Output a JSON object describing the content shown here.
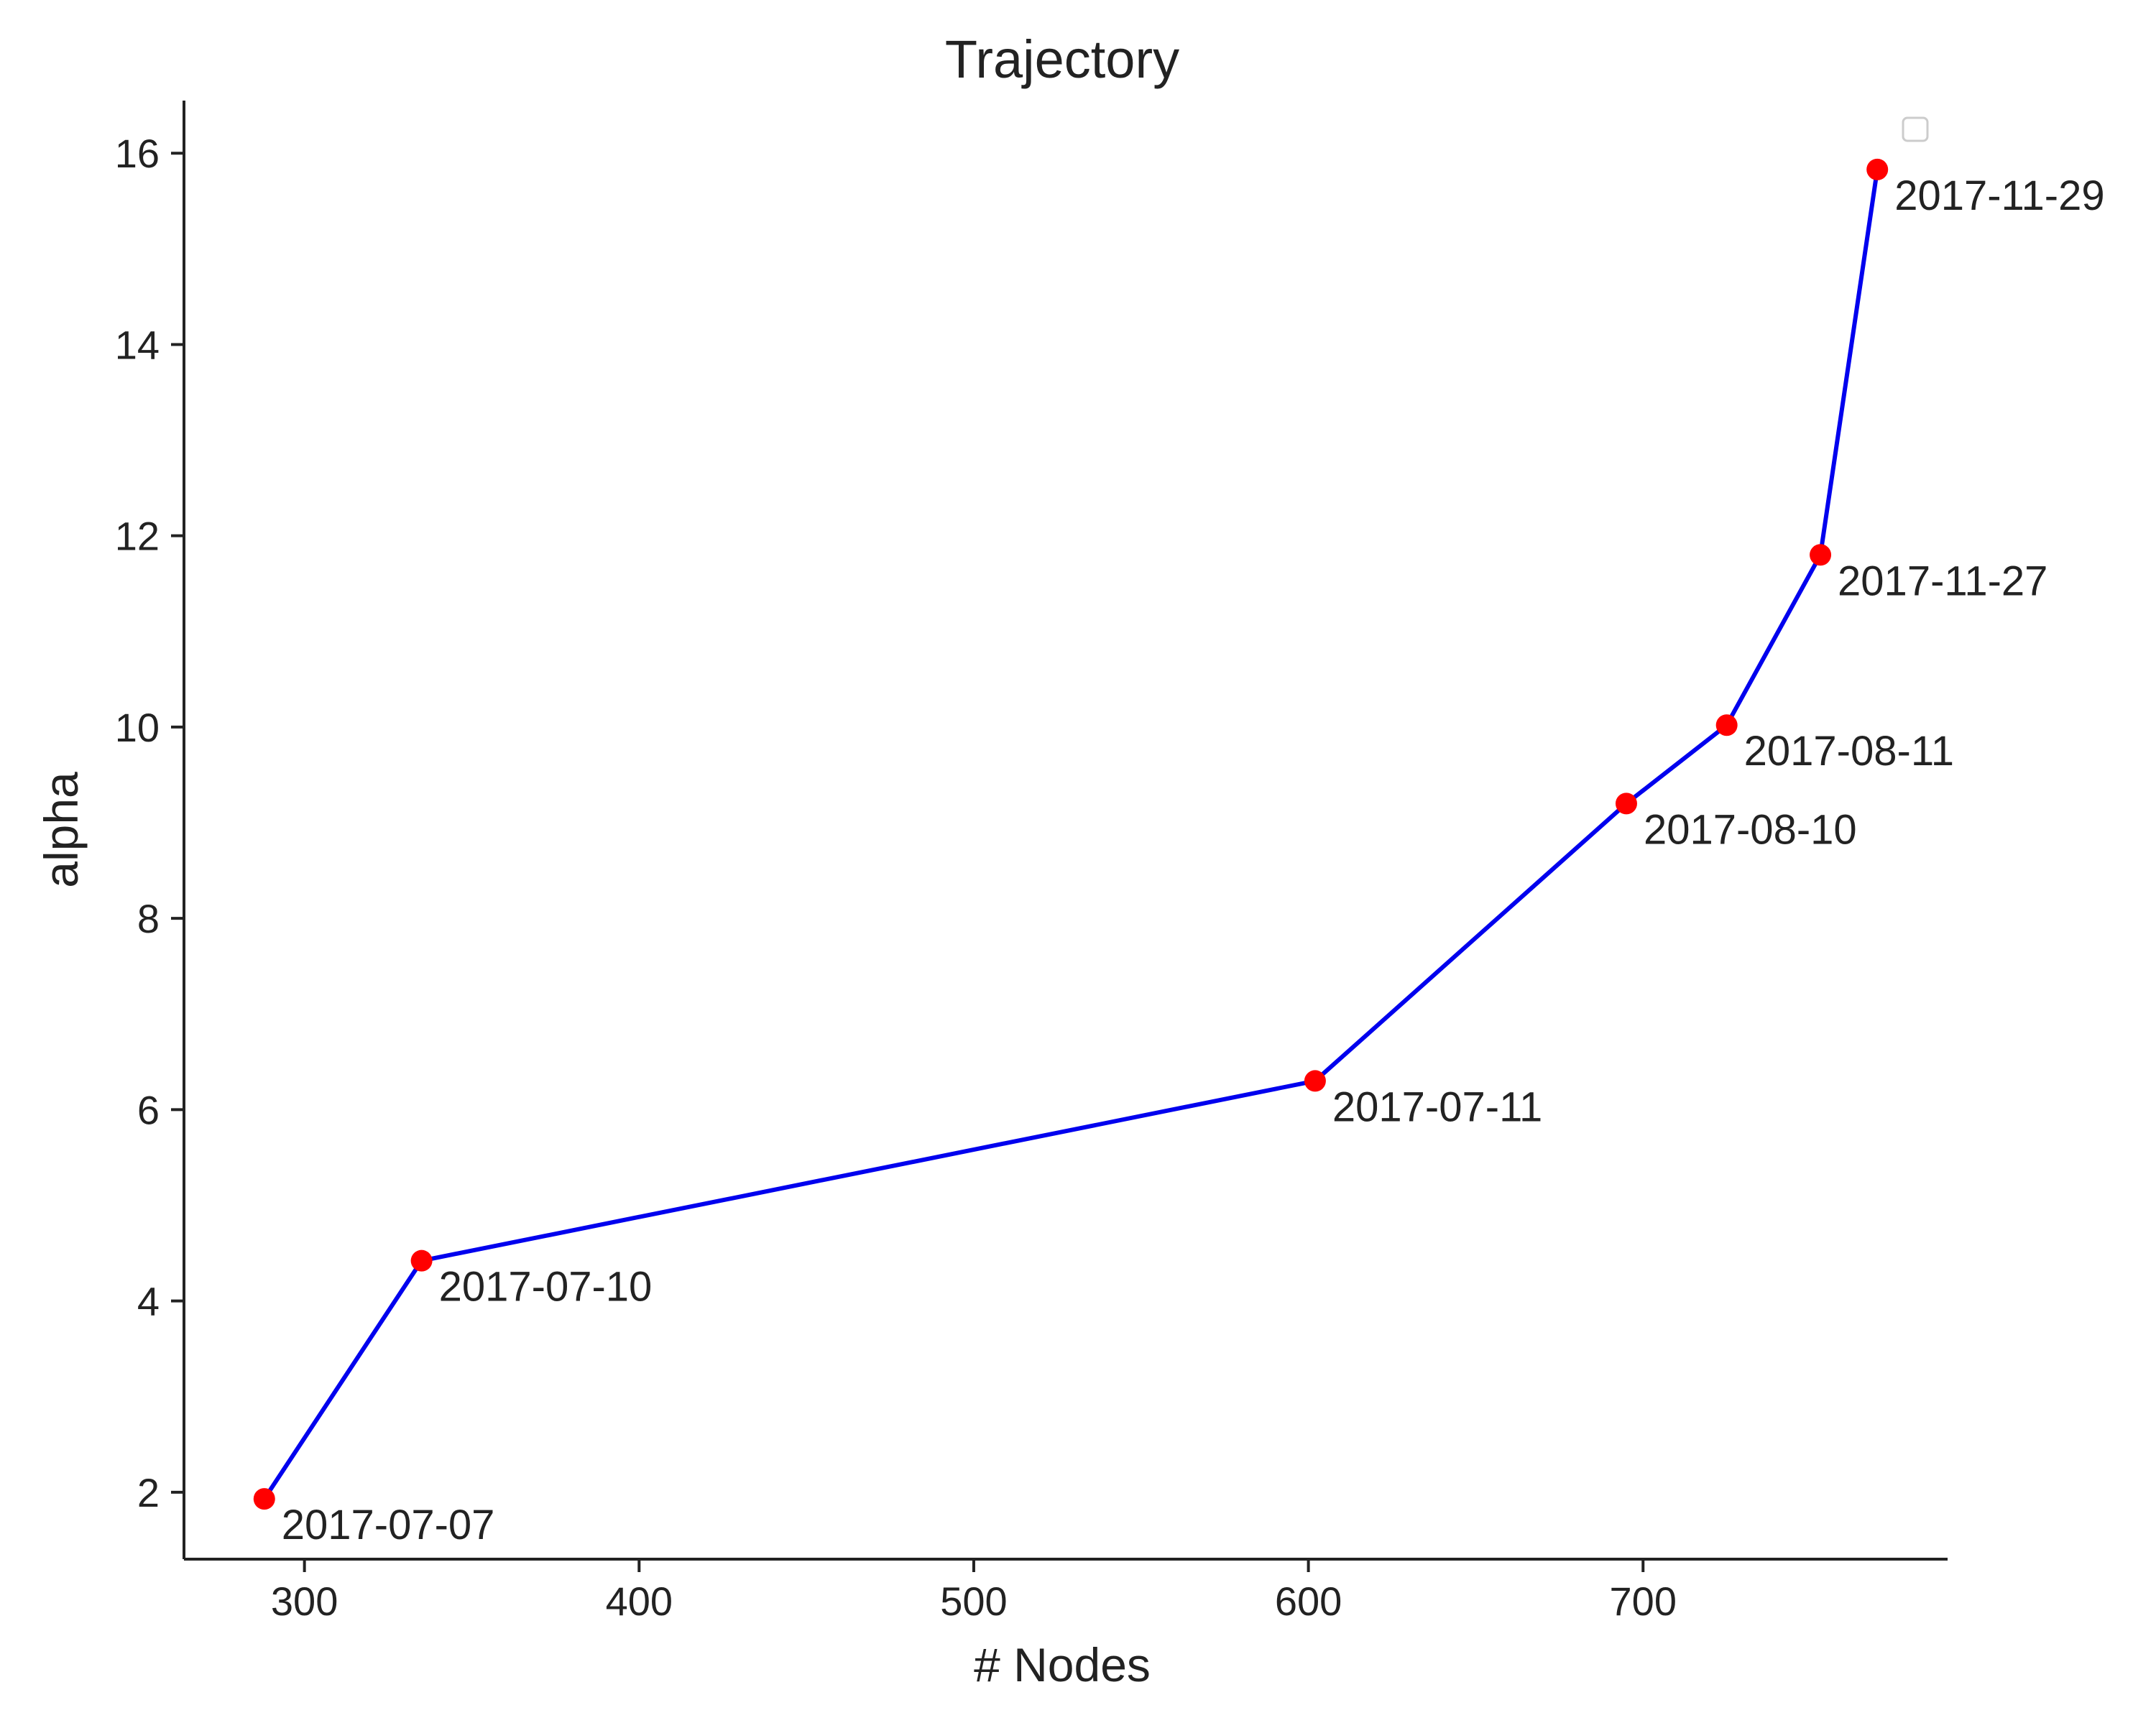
{
  "chart_data": {
    "type": "line",
    "title": "Trajectory",
    "xlabel": "# Nodes",
    "ylabel": "alpha",
    "xlim": [
      264,
      791
    ],
    "ylim": [
      1.3,
      16.55
    ],
    "x_ticks": [
      300,
      400,
      500,
      600,
      700
    ],
    "y_ticks": [
      2,
      4,
      6,
      8,
      10,
      12,
      14,
      16
    ],
    "grid": false,
    "legend": "top-right, empty",
    "colors": {
      "line": "#0000ee",
      "marker": "#ff0000",
      "axis": "#222222",
      "legend_border": "#cccccc"
    },
    "series": [
      {
        "points": [
          {
            "x": 288,
            "y": 1.93,
            "label": "2017-07-07"
          },
          {
            "x": 335,
            "y": 4.42,
            "label": "2017-07-10"
          },
          {
            "x": 602,
            "y": 6.3,
            "label": "2017-07-11"
          },
          {
            "x": 695,
            "y": 9.2,
            "label": "2017-08-10"
          },
          {
            "x": 725,
            "y": 10.02,
            "label": "2017-08-11"
          },
          {
            "x": 753,
            "y": 11.8,
            "label": "2017-11-27"
          },
          {
            "x": 770,
            "y": 15.83,
            "label": "2017-11-29"
          }
        ]
      }
    ]
  }
}
